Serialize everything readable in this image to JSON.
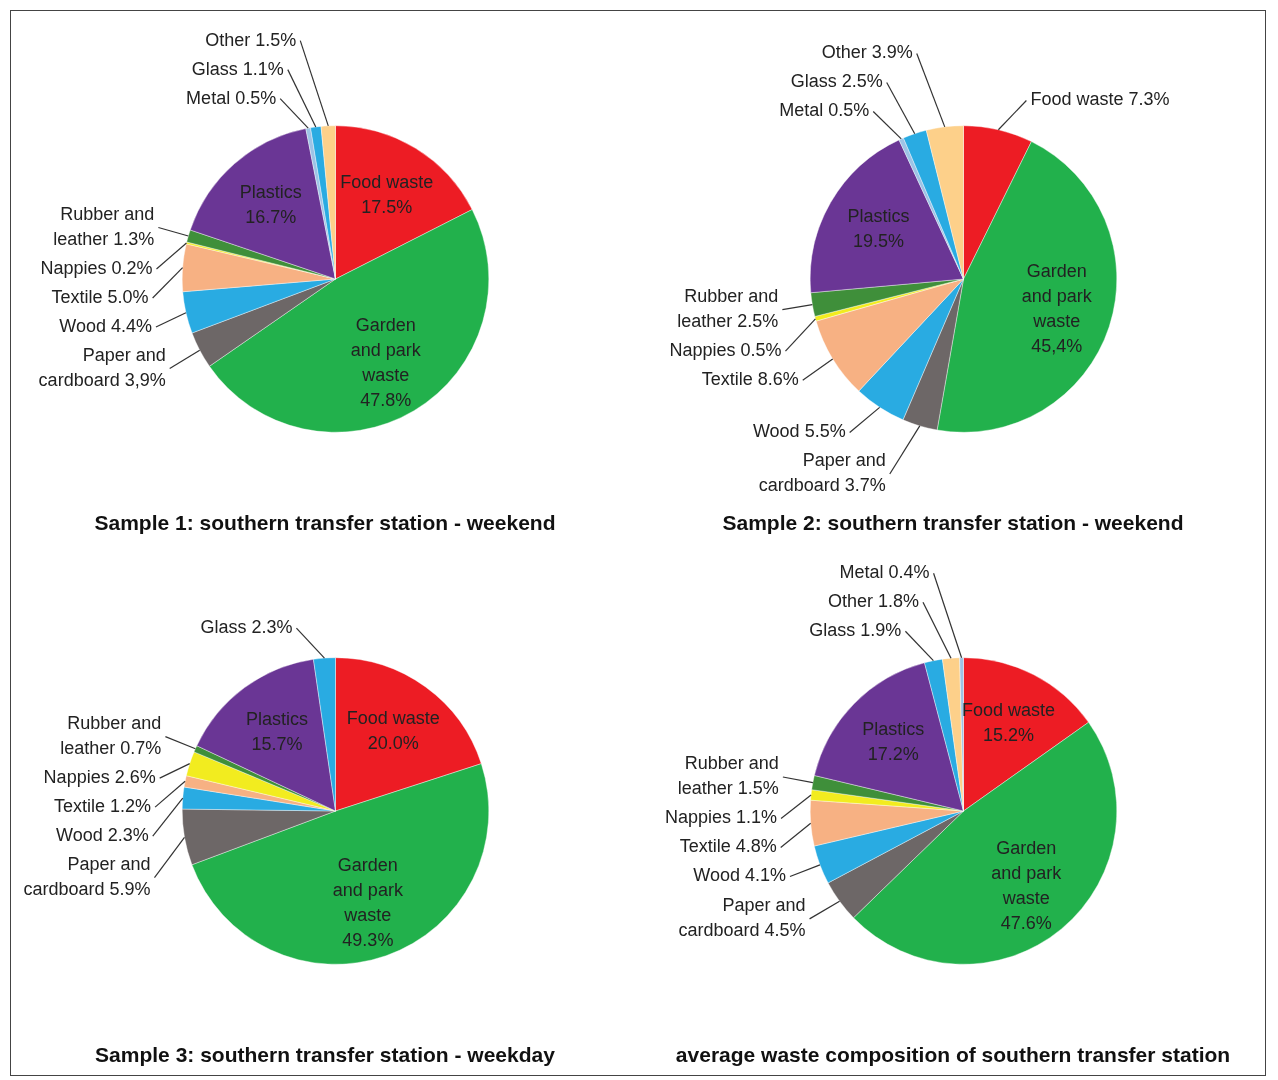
{
  "chart_data": [
    {
      "type": "pie",
      "title": "Sample 1: southern transfer station - weekend",
      "categories": [
        "Food waste",
        "Garden and park waste",
        "Paper and cardboard",
        "Wood",
        "Textile",
        "Nappies",
        "Rubber and leather",
        "Plastics",
        "Metal",
        "Glass",
        "Other"
      ],
      "values": [
        17.5,
        47.8,
        3.9,
        4.4,
        5.0,
        0.2,
        1.3,
        16.7,
        0.5,
        1.1,
        1.5
      ],
      "value_labels": [
        "17.5%",
        "47.8%",
        "3,9%",
        "4.4%",
        "5.0%",
        "0.2%",
        "1.3%",
        "16.7%",
        "0.5%",
        "1.1%",
        "1.5%"
      ],
      "colors": [
        "#ed1c24",
        "#22b14c",
        "#6d6767",
        "#29abe2",
        "#f7b183",
        "#f2ec1f",
        "#3f8f3a",
        "#6a3695",
        "#9dc3e6",
        "#29abe2",
        "#fdd08a"
      ],
      "legend": false
    },
    {
      "type": "pie",
      "title": "Sample 2: southern transfer station - weekend",
      "categories": [
        "Food waste",
        "Garden and park waste",
        "Paper and cardboard",
        "Wood",
        "Textile",
        "Nappies",
        "Rubber and leather",
        "Plastics",
        "Metal",
        "Glass",
        "Other"
      ],
      "values": [
        7.3,
        45.4,
        3.7,
        5.5,
        8.6,
        0.5,
        2.5,
        19.5,
        0.5,
        2.5,
        3.9
      ],
      "value_labels": [
        "7.3%",
        "45,4%",
        "3.7%",
        "5.5%",
        "8.6%",
        "0.5%",
        "2.5%",
        "19.5%",
        "0.5%",
        "2.5%",
        "3.9%"
      ],
      "colors": [
        "#ed1c24",
        "#22b14c",
        "#6d6767",
        "#29abe2",
        "#f7b183",
        "#f2ec1f",
        "#3f8f3a",
        "#6a3695",
        "#9dc3e6",
        "#29abe2",
        "#fdd08a"
      ],
      "legend": false
    },
    {
      "type": "pie",
      "title": "Sample 3: southern transfer station - weekday",
      "categories": [
        "Food waste",
        "Garden and park waste",
        "Paper and cardboard",
        "Wood",
        "Textile",
        "Nappies",
        "Rubber and leather",
        "Plastics",
        "Glass"
      ],
      "values": [
        20.0,
        49.3,
        5.9,
        2.3,
        1.2,
        2.6,
        0.7,
        15.7,
        2.3
      ],
      "value_labels": [
        "20.0%",
        "49.3%",
        "5.9%",
        "2.3%",
        "1.2%",
        "2.6%",
        "0.7%",
        "15.7%",
        "2.3%"
      ],
      "colors": [
        "#ed1c24",
        "#22b14c",
        "#6d6767",
        "#29abe2",
        "#f7b183",
        "#f2ec1f",
        "#3f8f3a",
        "#6a3695",
        "#29abe2"
      ],
      "legend": false
    },
    {
      "type": "pie",
      "title": "average waste composition of southern transfer station",
      "categories": [
        "Food waste",
        "Garden and park waste",
        "Paper and cardboard",
        "Wood",
        "Textile",
        "Nappies",
        "Rubber and leather",
        "Plastics",
        "Glass",
        "Other",
        "Metal"
      ],
      "values": [
        15.2,
        47.6,
        4.5,
        4.1,
        4.8,
        1.1,
        1.5,
        17.2,
        1.9,
        1.8,
        0.4
      ],
      "value_labels": [
        "15.2%",
        "47.6%",
        "4.5%",
        "4.1%",
        "4.8%",
        "1.1%",
        "1.5%",
        "17.2%",
        "1.9%",
        "1.8%",
        "0.4%"
      ],
      "colors": [
        "#ed1c24",
        "#22b14c",
        "#6d6767",
        "#29abe2",
        "#f7b183",
        "#f2ec1f",
        "#3f8f3a",
        "#6a3695",
        "#29abe2",
        "#fdd08a",
        "#9dc3e6"
      ],
      "legend": false
    }
  ]
}
